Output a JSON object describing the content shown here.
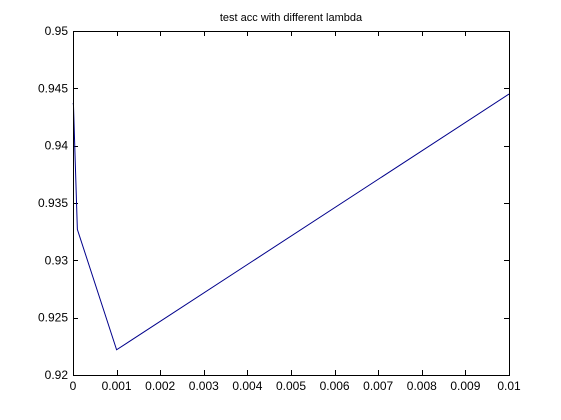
{
  "colors": {
    "background": "#ffffff",
    "axes": "#000000",
    "series": "#00008b"
  },
  "chart_data": {
    "type": "line",
    "title": "test acc with different lambda",
    "xlabel": "",
    "ylabel": "",
    "xlim": [
      0,
      0.01
    ],
    "ylim": [
      0.92,
      0.95
    ],
    "grid": false,
    "legend": "none",
    "x_ticks": [
      0,
      0.001,
      0.002,
      0.003,
      0.004,
      0.005,
      0.006,
      0.007,
      0.008,
      0.009,
      0.01
    ],
    "x_tick_labels": [
      "0",
      "0.001",
      "0.002",
      "0.003",
      "0.004",
      "0.005",
      "0.006",
      "0.007",
      "0.008",
      "0.009",
      "0.01"
    ],
    "y_ticks": [
      0.92,
      0.925,
      0.93,
      0.935,
      0.94,
      0.945,
      0.95
    ],
    "y_tick_labels": [
      "0.92",
      "0.925",
      "0.93",
      "0.935",
      "0.94",
      "0.945",
      "0.95"
    ],
    "series": [
      {
        "x": [
          0,
          1e-05,
          0.0001,
          0.001,
          0.01
        ],
        "y": [
          0.9437,
          0.9436,
          0.9327,
          0.9222,
          0.9445
        ]
      }
    ]
  }
}
